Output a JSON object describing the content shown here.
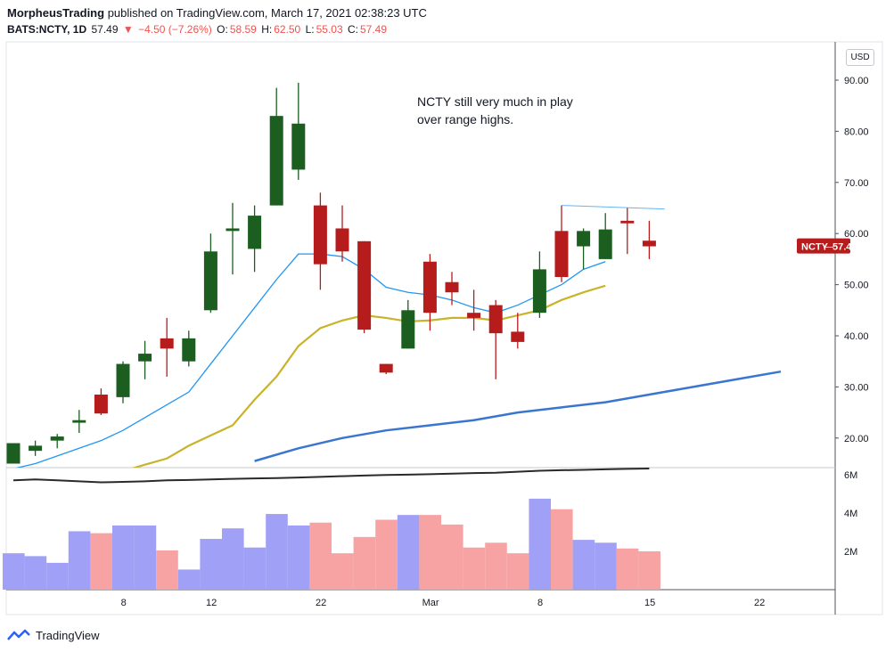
{
  "header": {
    "publisher": "MorpheusTrading",
    "published_text": "published on TradingView.com, March 17, 2021 02:38:23 UTC",
    "symbol": "BATS:NCTY, 1D",
    "last": "57.49",
    "change_arrow": "▼",
    "change": "−4.50 (−7.26%)",
    "o_label": "O:",
    "o_value": "58.59",
    "h_label": "H:",
    "h_value": "62.50",
    "l_label": "L:",
    "l_value": "55.03",
    "c_label": "C:",
    "c_value": "57.49"
  },
  "currency_button": "USD",
  "annotation": {
    "line1": "NCTY still very much in play",
    "line2": "over range highs."
  },
  "price_tag": {
    "symbol": "NCTY",
    "value": "57.49",
    "color": "#b71c1c"
  },
  "footer": {
    "brand": "TradingView"
  },
  "colors": {
    "up": "#1b5e20",
    "down": "#b71c1c",
    "vol_up": "#9fa0f6",
    "vol_down": "#f8a3a3",
    "ma_fast": "#2196f3",
    "ma_mid": "#c9b32b",
    "ma_slow": "#3a76d0",
    "vol_ma": "#2a2a2a",
    "resistance": "#64b5f6"
  },
  "chart_data": {
    "type": "candlestick",
    "price_axis": {
      "ticks": [
        20,
        30,
        40,
        50,
        60,
        70,
        80,
        90
      ],
      "tick_labels": [
        "20.00",
        "30.00",
        "40.00",
        "50.00",
        "60.00",
        "70.00",
        "80.00",
        "90.00"
      ]
    },
    "volume_axis": {
      "ticks": [
        2,
        4,
        6
      ],
      "tick_labels": [
        "2M",
        "4M",
        "6M"
      ]
    },
    "x_tick_labels": [
      {
        "label": "8",
        "after_index": 4.5
      },
      {
        "label": "12",
        "after_index": 8.5
      },
      {
        "label": "22",
        "after_index": 13.5
      },
      {
        "label": "Mar",
        "after_index": 18.5
      },
      {
        "label": "8",
        "after_index": 23.5
      },
      {
        "label": "15",
        "after_index": 28.5
      },
      {
        "label": "22",
        "after_index": 33.5
      }
    ],
    "candles": [
      {
        "o": 15,
        "h": 19,
        "l": 15,
        "c": 19
      },
      {
        "o": 17.5,
        "h": 19.5,
        "l": 16.5,
        "c": 18.5
      },
      {
        "o": 19.5,
        "h": 20.8,
        "l": 18,
        "c": 20.3
      },
      {
        "o": 23,
        "h": 25.5,
        "l": 21,
        "c": 23.5
      },
      {
        "o": 28.5,
        "h": 29.7,
        "l": 24.5,
        "c": 24.8
      },
      {
        "o": 28,
        "h": 35,
        "l": 26.8,
        "c": 34.5
      },
      {
        "o": 35,
        "h": 39,
        "l": 31.5,
        "c": 36.5
      },
      {
        "o": 39.5,
        "h": 43.5,
        "l": 32,
        "c": 37.5
      },
      {
        "o": 35,
        "h": 41,
        "l": 34,
        "c": 39.5
      },
      {
        "o": 45,
        "h": 60,
        "l": 44.5,
        "c": 56.5
      },
      {
        "o": 60.5,
        "h": 66,
        "l": 52,
        "c": 61
      },
      {
        "o": 57,
        "h": 65.5,
        "l": 52.5,
        "c": 63.5
      },
      {
        "o": 65.5,
        "h": 88.5,
        "l": 65.5,
        "c": 83
      },
      {
        "o": 72.5,
        "h": 89.5,
        "l": 70.5,
        "c": 81.5
      },
      {
        "o": 65.5,
        "h": 68,
        "l": 49,
        "c": 54
      },
      {
        "o": 61,
        "h": 65.5,
        "l": 54.5,
        "c": 56.5
      },
      {
        "o": 58.5,
        "h": 58.5,
        "l": 40.5,
        "c": 41.2
      },
      {
        "o": 34.5,
        "h": 34.5,
        "l": 32.5,
        "c": 32.8
      },
      {
        "o": 37.5,
        "h": 47,
        "l": 37.5,
        "c": 45
      },
      {
        "o": 54.5,
        "h": 56,
        "l": 41,
        "c": 44.5
      },
      {
        "o": 50.5,
        "h": 52.5,
        "l": 46,
        "c": 48.5
      },
      {
        "o": 44.5,
        "h": 49,
        "l": 41,
        "c": 43.5
      },
      {
        "o": 46,
        "h": 47,
        "l": 31.5,
        "c": 40.5
      },
      {
        "o": 40.8,
        "h": 44.5,
        "l": 37.5,
        "c": 38.8
      },
      {
        "o": 44.5,
        "h": 56.5,
        "l": 43.5,
        "c": 53
      },
      {
        "o": 60.5,
        "h": 65.5,
        "l": 50.5,
        "c": 51.5
      },
      {
        "o": 57.5,
        "h": 61,
        "l": 53,
        "c": 60.5
      },
      {
        "o": 55,
        "h": 64,
        "l": 55,
        "c": 60.8
      },
      {
        "o": 62.5,
        "h": 65,
        "l": 56,
        "c": 62
      },
      {
        "o": 58.6,
        "h": 62.5,
        "l": 55,
        "c": 57.5
      }
    ],
    "volume_millions": [
      1.9,
      1.75,
      1.4,
      3.05,
      2.95,
      3.35,
      3.35,
      2.05,
      1.05,
      2.65,
      3.2,
      2.2,
      3.95,
      3.35,
      3.5,
      1.9,
      2.75,
      3.65,
      3.9,
      3.9,
      3.4,
      2.2,
      2.45,
      1.9,
      4.75,
      4.2,
      2.6,
      2.45,
      2.15,
      2.0
    ],
    "ma_fast": [
      14,
      15,
      16.5,
      18,
      19.5,
      21.5,
      24,
      26.5,
      29,
      34.5,
      40,
      45.5,
      51,
      56,
      56,
      55.5,
      53,
      49.5,
      48.5,
      48,
      47,
      45.5,
      44.5,
      46,
      48,
      50,
      53,
      54.5
    ],
    "ma_fast_start_index": 0,
    "ma_mid": [
      12,
      12.7,
      13.5,
      14.8,
      16,
      18.5,
      20.5,
      22.5,
      27.5,
      32,
      38,
      41.5,
      43,
      44,
      43.5,
      42.8,
      43,
      43.5,
      43.5,
      43,
      44,
      45,
      47,
      48.5,
      49.8
    ],
    "ma_mid_start_index": 3,
    "ma_slow": [
      15.5,
      18,
      20,
      21.5,
      22.5,
      23.5,
      25,
      26,
      27,
      28.5,
      30,
      31.5,
      33
    ],
    "ma_slow_start_index": 11,
    "ma_slow_step": 2,
    "volume_ma_millions": [
      5.8,
      5.85,
      5.8,
      5.75,
      5.7,
      5.72,
      5.75,
      5.8,
      5.82,
      5.85,
      5.88,
      5.9,
      5.92,
      5.95,
      5.98,
      6.02,
      6.05,
      6.08,
      6.1,
      6.12,
      6.15,
      6.18,
      6.2,
      6.25,
      6.3,
      6.33,
      6.35,
      6.38,
      6.4,
      6.42
    ],
    "resistance": {
      "price_start": 65.5,
      "price_end": 64.8,
      "from_index": 25,
      "to_index": 34
    }
  }
}
